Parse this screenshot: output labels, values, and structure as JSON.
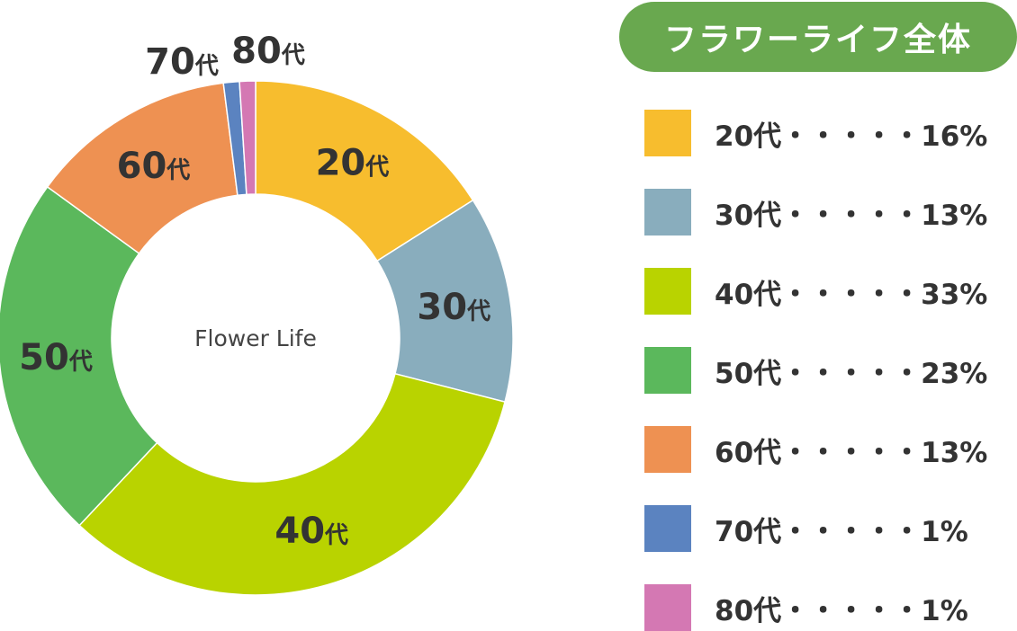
{
  "chart_data": {
    "type": "pie",
    "center_label": "Flower Life",
    "legend_title": "フラワーライフ全体",
    "suffix": "代",
    "dots": "・・・・・",
    "slices": [
      {
        "age": "20",
        "value": 16,
        "percent_text": "16%",
        "color": "#f7bd2e"
      },
      {
        "age": "30",
        "value": 13,
        "percent_text": "13%",
        "color": "#89adbd"
      },
      {
        "age": "40",
        "value": 33,
        "percent_text": "33%",
        "color": "#b9d300"
      },
      {
        "age": "50",
        "value": 23,
        "percent_text": "23%",
        "color": "#5bb85c"
      },
      {
        "age": "60",
        "value": 13,
        "percent_text": "13%",
        "color": "#ee9152"
      },
      {
        "age": "70",
        "value": 1,
        "percent_text": "1%",
        "color": "#5b83c0"
      },
      {
        "age": "80",
        "value": 1,
        "percent_text": "1%",
        "color": "#d478b3"
      }
    ]
  }
}
